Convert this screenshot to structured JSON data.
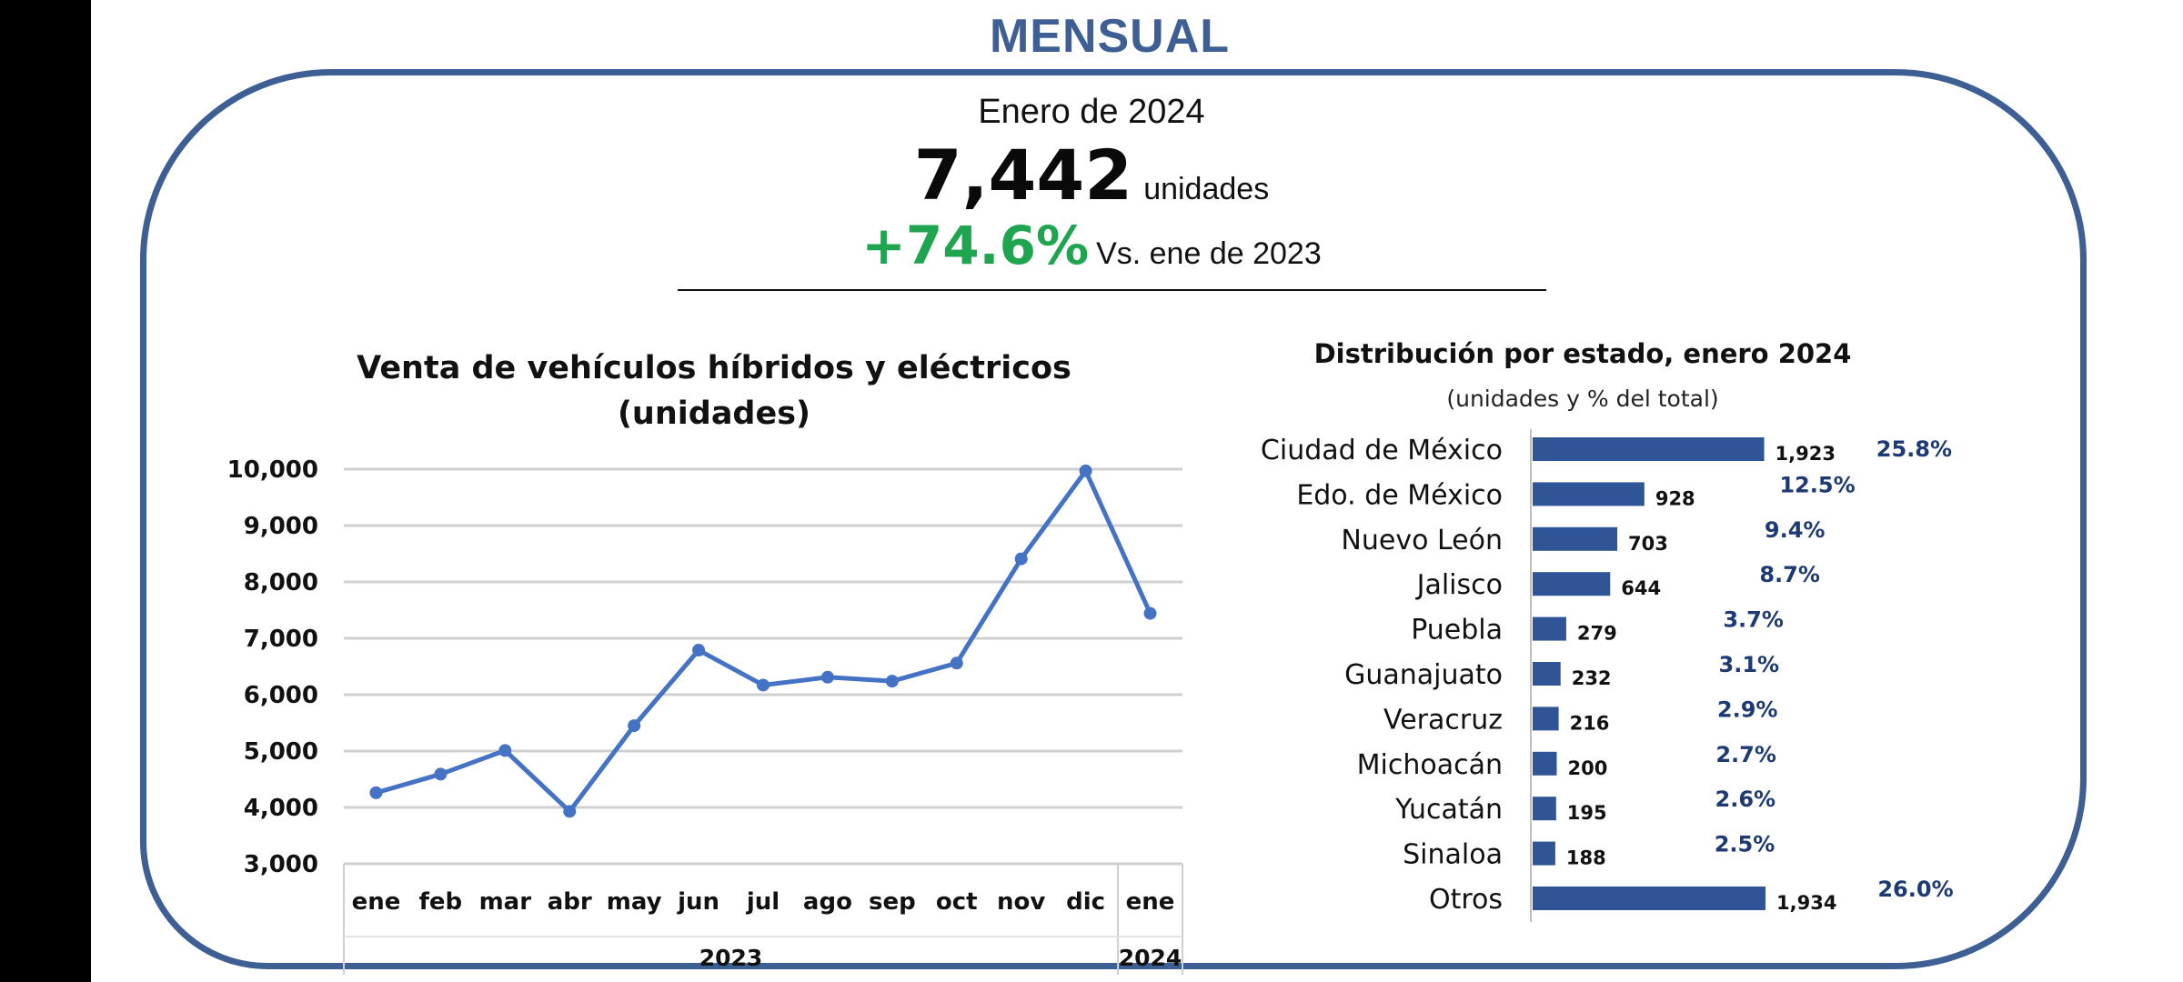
{
  "header": {
    "section_title": "MENSUAL",
    "period": "Enero de 2024",
    "total_value": "7,442",
    "total_unit": "unidades",
    "change_value": "+74.6%",
    "change_label": "Vs. ene de 2023"
  },
  "colors": {
    "brand": "#3e5f94",
    "line": "#4472c4",
    "bar": "#2f5597",
    "positive": "#1fa54f",
    "percent_text": "#1d3a73"
  },
  "chart_data": [
    {
      "type": "line",
      "title": "Venta de vehículos híbridos y eléctricos",
      "subtitle": "(unidades)",
      "categories": [
        "ene",
        "feb",
        "mar",
        "abr",
        "may",
        "jun",
        "jul",
        "ago",
        "sep",
        "oct",
        "nov",
        "dic",
        "ene"
      ],
      "groups": [
        {
          "label": "2023",
          "count": 12
        },
        {
          "label": "2024",
          "count": 1
        }
      ],
      "values": [
        4260,
        4590,
        5010,
        3930,
        5450,
        6790,
        6170,
        6310,
        6240,
        6560,
        8410,
        9970,
        7442
      ],
      "ylim": [
        3000,
        10000
      ],
      "yticks": [
        "3,000",
        "4,000",
        "5,000",
        "6,000",
        "7,000",
        "8,000",
        "9,000",
        "10,000"
      ],
      "ytick_values": [
        3000,
        4000,
        5000,
        6000,
        7000,
        8000,
        9000,
        10000
      ],
      "grid": true,
      "xlabel": "",
      "ylabel": ""
    },
    {
      "type": "bar",
      "orientation": "horizontal",
      "title": "Distribución por estado, enero 2024",
      "subtitle": "(unidades y % del total)",
      "categories": [
        "Ciudad de México",
        "Edo. de México",
        "Nuevo León",
        "Jalisco",
        "Puebla",
        "Guanajuato",
        "Veracruz",
        "Michoacán",
        "Yucatán",
        "Sinaloa",
        "Otros"
      ],
      "values": [
        1923,
        928,
        703,
        644,
        279,
        232,
        216,
        200,
        195,
        188,
        1934
      ],
      "value_labels": [
        "1,923",
        "928",
        "703",
        "644",
        "279",
        "232",
        "216",
        "200",
        "195",
        "188",
        "1,934"
      ],
      "percent_labels": [
        "25.8%",
        "12.5%",
        "9.4%",
        "8.7%",
        "3.7%",
        "3.1%",
        "2.9%",
        "2.7%",
        "2.6%",
        "2.5%",
        "26.0%"
      ],
      "percents": [
        25.8,
        12.5,
        9.4,
        8.7,
        3.7,
        3.1,
        2.9,
        2.7,
        2.6,
        2.5,
        26.0
      ],
      "xlim": [
        0,
        1934
      ]
    }
  ]
}
